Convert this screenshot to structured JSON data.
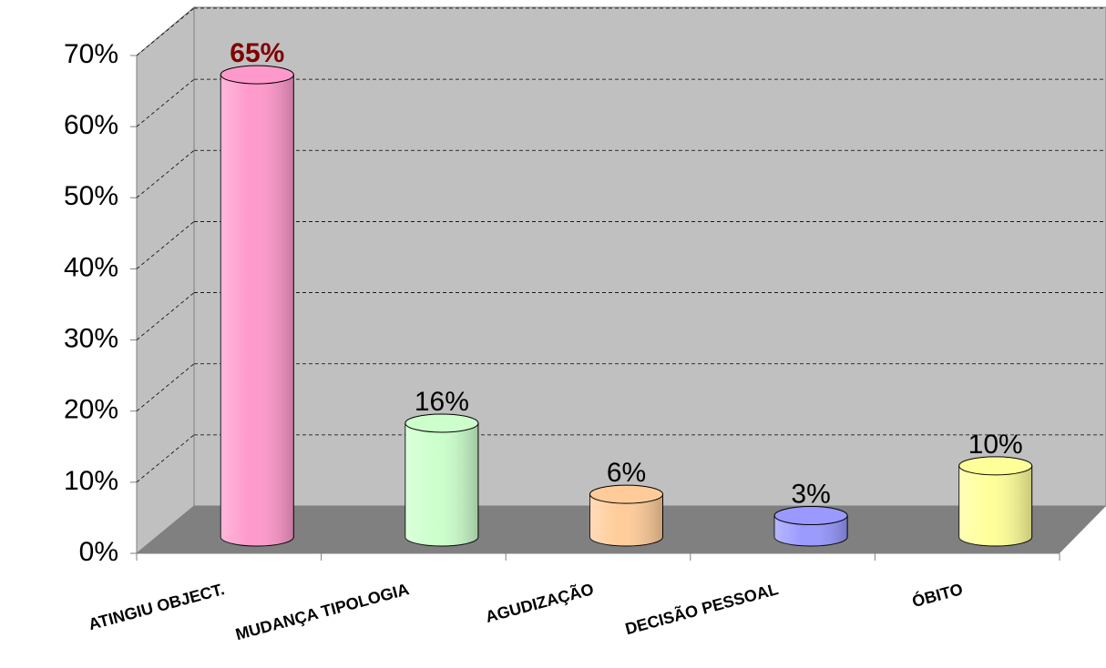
{
  "chart_data": {
    "type": "bar3d",
    "categories": [
      "ATINGIU OBJECT.",
      "MUDANÇA TIPOLOGIA",
      "AGUDIZAÇÃO",
      "DECISÃO PESSOAL",
      "ÓBITO"
    ],
    "values": [
      65,
      16,
      6,
      3,
      10
    ],
    "value_labels": [
      "65%",
      "16%",
      "6%",
      "3%",
      "10%"
    ],
    "value_label_colors": [
      "#800000",
      "#000000",
      "#000000",
      "#000000",
      "#000000"
    ],
    "colors": [
      "#ff99cc",
      "#ccffcc",
      "#ffcc99",
      "#9999ff",
      "#ffff99"
    ],
    "ylim": [
      0,
      70
    ],
    "yticks": [
      {
        "value": 0,
        "label": "0%"
      },
      {
        "value": 10,
        "label": "10%"
      },
      {
        "value": 20,
        "label": "20%"
      },
      {
        "value": 30,
        "label": "30%"
      },
      {
        "value": 40,
        "label": "40%"
      },
      {
        "value": 50,
        "label": "50%"
      },
      {
        "value": 60,
        "label": "60%"
      },
      {
        "value": 70,
        "label": "70%"
      }
    ],
    "grid": true
  }
}
